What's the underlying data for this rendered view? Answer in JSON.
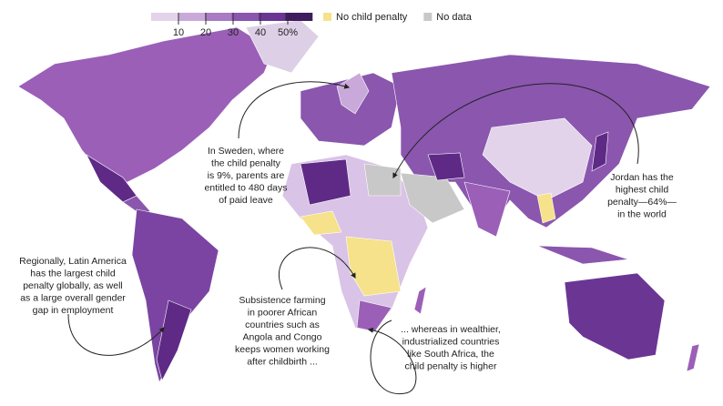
{
  "legend": {
    "scale": {
      "lim": [
        0,
        59
      ],
      "colors": [
        "#e3d3ea",
        "#c9a9d9",
        "#a97bc4",
        "#8a56ae",
        "#6b3594",
        "#3e1c5e"
      ],
      "ticks": [
        10,
        20,
        30,
        40,
        {
          "value": 50,
          "label": "50%"
        }
      ]
    },
    "categories": [
      {
        "label": "No child penalty",
        "color": "#f5e28a"
      },
      {
        "label": "No data",
        "color": "#c8c8c8"
      }
    ]
  },
  "annotations": [
    {
      "lines": [
        "In Sweden, where",
        "the child penalty",
        "is 9%, parents are",
        "entitled to 480 days",
        "of paid leave"
      ]
    },
    {
      "lines": [
        "Jordan has the",
        "highest child",
        "penalty—64%—",
        "in the world"
      ]
    },
    {
      "lines": [
        "Regionally, Latin America",
        "has the largest child",
        "penalty globally, as well",
        "as a large overall gender",
        "gap in employment"
      ]
    },
    {
      "lines": [
        "Subsistence farming",
        "in poorer African",
        "countries such as",
        "Angola and Congo",
        "keeps women working",
        "after childbirth ..."
      ]
    },
    {
      "lines": [
        "... whereas in wealthier,",
        "industrialized countries",
        "like South Africa, the",
        "child penalty is higher"
      ]
    }
  ]
}
